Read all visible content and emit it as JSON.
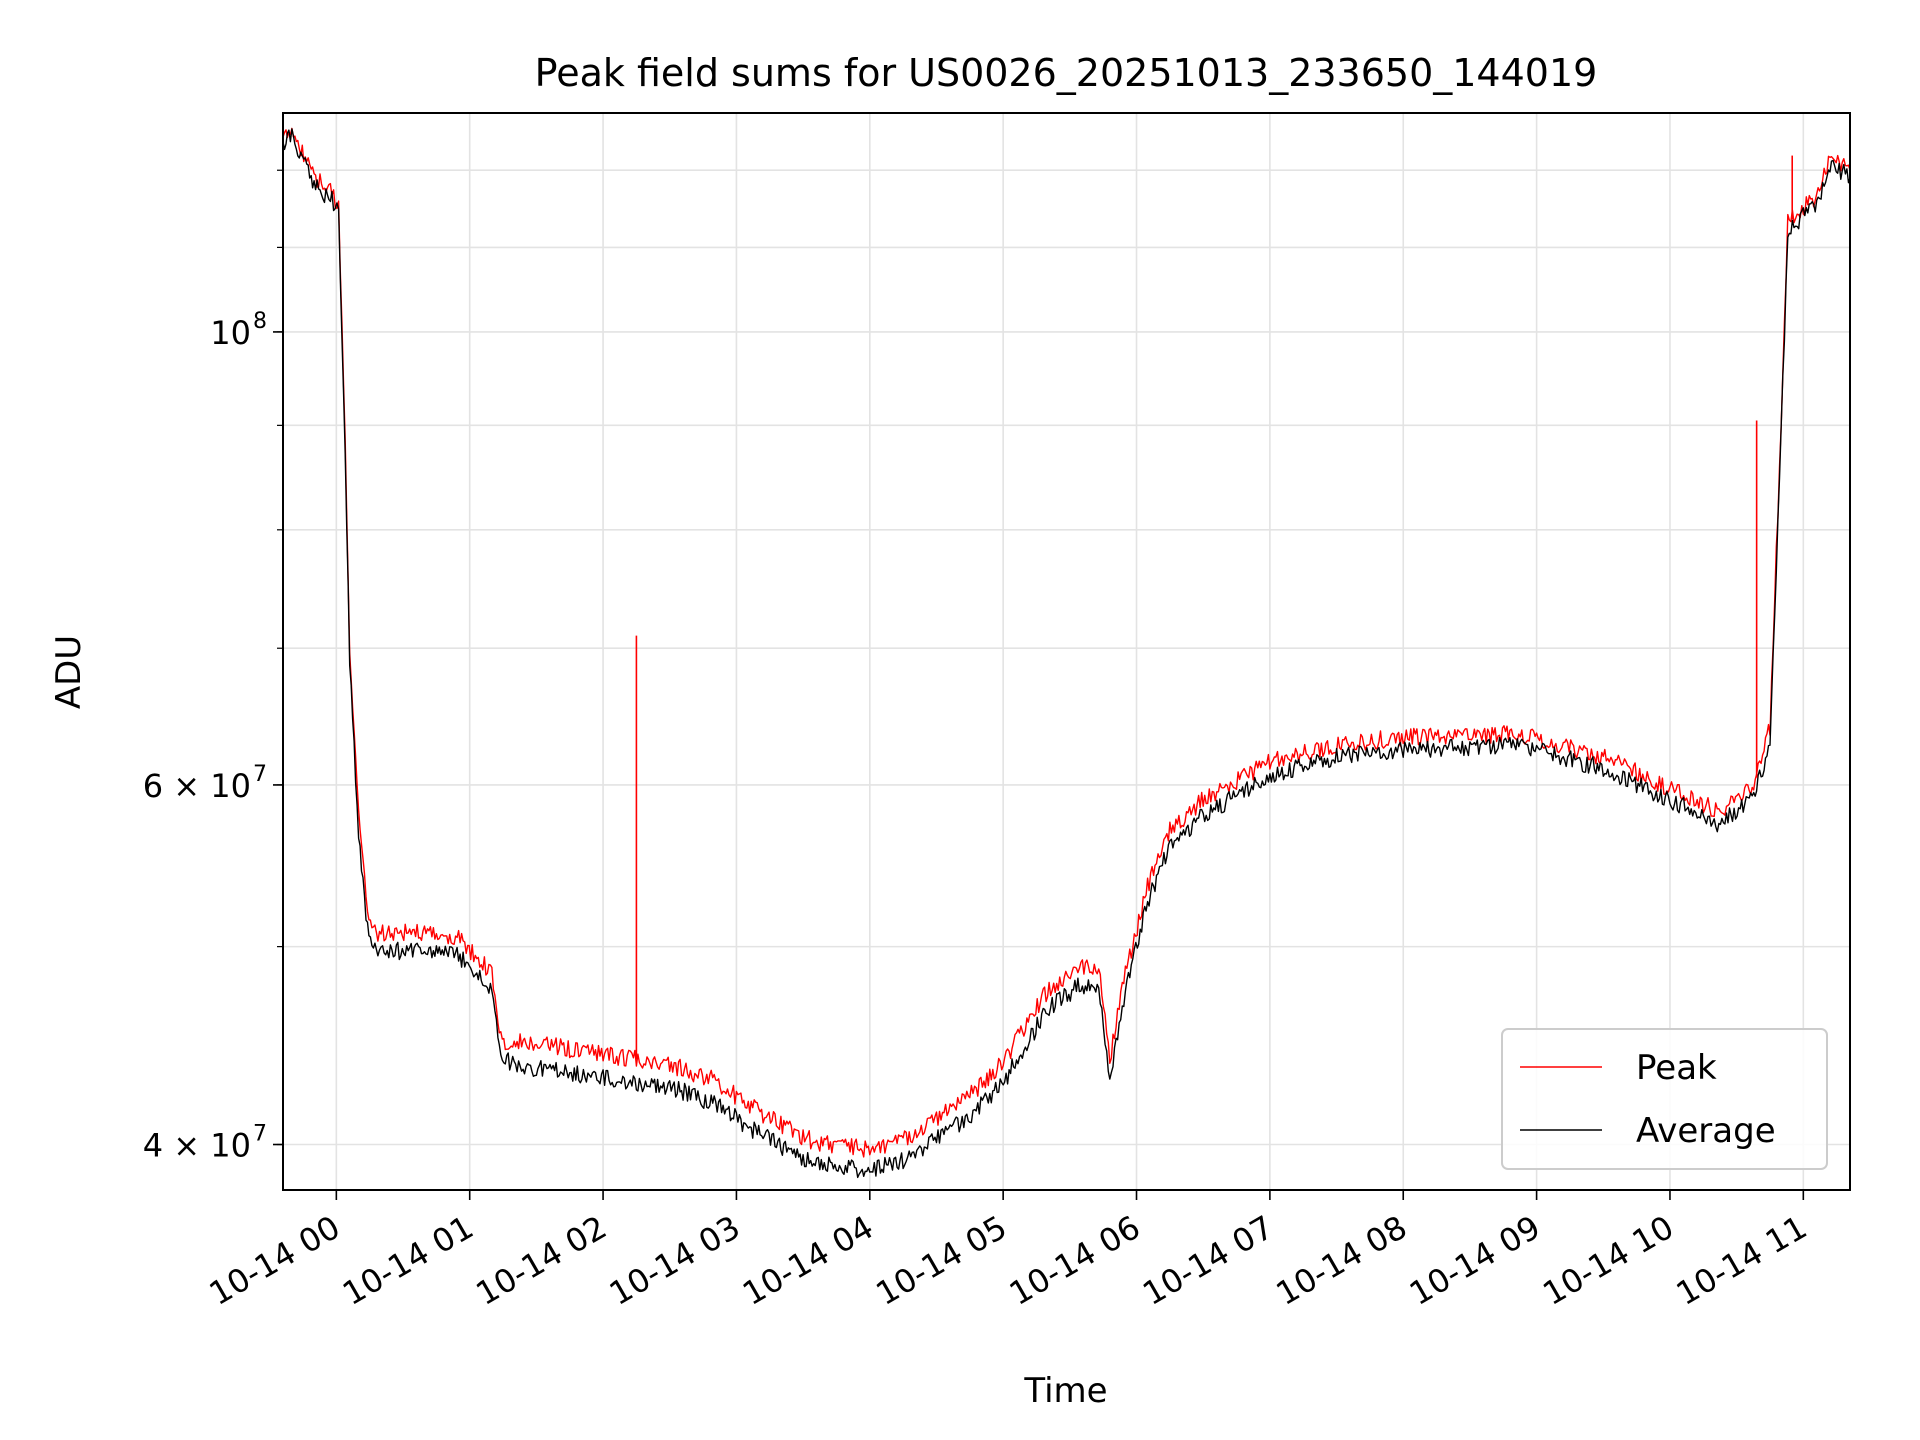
{
  "chart_data": {
    "type": "line",
    "title": "Peak field sums for US0026_20251013_233650_144019",
    "xlabel": "Time",
    "ylabel": "ADU",
    "yscale": "log",
    "ylim": [
      38000000,
      128000000
    ],
    "xlim": [
      "10-13 23:36",
      "10-14 11:21"
    ],
    "grid": true,
    "legend_position": "lower right",
    "x_tick_labels": [
      "10-14 00",
      "10-14 01",
      "10-14 02",
      "10-14 03",
      "10-14 04",
      "10-14 05",
      "10-14 06",
      "10-14 07",
      "10-14 08",
      "10-14 09",
      "10-14 10",
      "10-14 11"
    ],
    "y_tick_labels": [
      {
        "value": 100000000,
        "label": "10",
        "exp": "8"
      },
      {
        "value": 60000000,
        "label": "6 × 10",
        "exp": "7"
      },
      {
        "value": 40000000,
        "label": "4 × 10",
        "exp": "7"
      }
    ],
    "series": [
      {
        "name": "Peak",
        "color": "#ff0000",
        "x": [
          "10-13 23:36",
          "10-13 23:40",
          "10-13 23:50",
          "10-13 23:58",
          "10-14 00:01",
          "10-14 00:04",
          "10-14 00:06",
          "10-14 00:10",
          "10-14 00:14",
          "10-14 00:18",
          "10-14 00:25",
          "10-14 00:35",
          "10-14 00:45",
          "10-14 00:55",
          "10-14 01:10",
          "10-14 01:14",
          "10-14 01:30",
          "10-14 02:00",
          "10-14 02:30",
          "10-14 02:50",
          "10-14 03:10",
          "10-14 03:30",
          "10-14 03:45",
          "10-14 04:00",
          "10-14 04:15",
          "10-14 04:30",
          "10-14 04:45",
          "10-14 04:50",
          "10-14 05:00",
          "10-14 05:20",
          "10-14 05:35",
          "10-14 05:43",
          "10-14 05:48",
          "10-14 05:55",
          "10-14 06:05",
          "10-14 06:15",
          "10-14 06:30",
          "10-14 07:00",
          "10-14 07:30",
          "10-14 08:00",
          "10-14 08:30",
          "10-14 08:50",
          "10-14 09:10",
          "10-14 09:30",
          "10-14 10:00",
          "10-14 10:15",
          "10-14 10:22",
          "10-14 10:35",
          "10-14 10:39",
          "10-14 10:45",
          "10-14 10:50",
          "10-14 10:53",
          "10-14 11:00",
          "10-14 11:06",
          "10-14 11:12",
          "10-14 11:21"
        ],
        "y": [
          124000000,
          126000000,
          119000000,
          117000000,
          115000000,
          88000000,
          70000000,
          58000000,
          52000000,
          50800000,
          50700000,
          50900000,
          50600000,
          50500000,
          48500000,
          45000000,
          44800000,
          44300000,
          43800000,
          43000000,
          41500000,
          40300000,
          39900000,
          39800000,
          40200000,
          41200000,
          42300000,
          42800000,
          43900000,
          47600000,
          48900000,
          48700000,
          44000000,
          48500000,
          53500000,
          57000000,
          59000000,
          61600000,
          62800000,
          63300000,
          63400000,
          63600000,
          62800000,
          61900000,
          59800000,
          58700000,
          58200000,
          59500000,
          60500000,
          64000000,
          90000000,
          113000000,
          115000000,
          116500000,
          122000000,
          120000000
        ]
      },
      {
        "name": "Average",
        "color": "#000000",
        "x": [
          "10-13 23:36",
          "10-13 23:40",
          "10-13 23:50",
          "10-13 23:58",
          "10-14 00:01",
          "10-14 00:04",
          "10-14 00:06",
          "10-14 00:10",
          "10-14 00:14",
          "10-14 00:18",
          "10-14 00:25",
          "10-14 00:35",
          "10-14 00:45",
          "10-14 00:55",
          "10-14 01:10",
          "10-14 01:14",
          "10-14 01:30",
          "10-14 02:00",
          "10-14 02:30",
          "10-14 02:50",
          "10-14 03:10",
          "10-14 03:30",
          "10-14 03:45",
          "10-14 04:00",
          "10-14 04:15",
          "10-14 04:30",
          "10-14 04:45",
          "10-14 04:50",
          "10-14 05:00",
          "10-14 05:20",
          "10-14 05:35",
          "10-14 05:43",
          "10-14 05:48",
          "10-14 05:55",
          "10-14 06:05",
          "10-14 06:15",
          "10-14 06:30",
          "10-14 07:00",
          "10-14 07:30",
          "10-14 08:00",
          "10-14 08:30",
          "10-14 08:50",
          "10-14 09:10",
          "10-14 09:30",
          "10-14 10:00",
          "10-14 10:15",
          "10-14 10:22",
          "10-14 10:35",
          "10-14 10:39",
          "10-14 10:45",
          "10-14 10:50",
          "10-14 10:53",
          "10-14 11:00",
          "10-14 11:06",
          "10-14 11:12",
          "10-14 11:21"
        ],
        "y": [
          123000000,
          125000000,
          118000000,
          116000000,
          114000000,
          87000000,
          69000000,
          57000000,
          51000000,
          49800000,
          49700000,
          49900000,
          49600000,
          49500000,
          47500000,
          44000000,
          43600000,
          43100000,
          42700000,
          41900000,
          40500000,
          39400000,
          39000000,
          38900000,
          39300000,
          40300000,
          41300000,
          41800000,
          42900000,
          46600000,
          47900000,
          47700000,
          43000000,
          47500000,
          52500000,
          56000000,
          58000000,
          60600000,
          61900000,
          62500000,
          62600000,
          62800000,
          62000000,
          61100000,
          59000000,
          57900000,
          57400000,
          58700000,
          59700000,
          63000000,
          89000000,
          112000000,
          114000000,
          115500000,
          121000000,
          119000000
        ]
      }
    ],
    "spikes": [
      {
        "series": "Peak",
        "x": "10-14 02:15",
        "y": 71000000
      },
      {
        "series": "Peak",
        "x": "10-14 10:39",
        "y": 90500000
      },
      {
        "series": "Peak",
        "x": "10-14 10:55",
        "y": 122000000
      }
    ]
  }
}
